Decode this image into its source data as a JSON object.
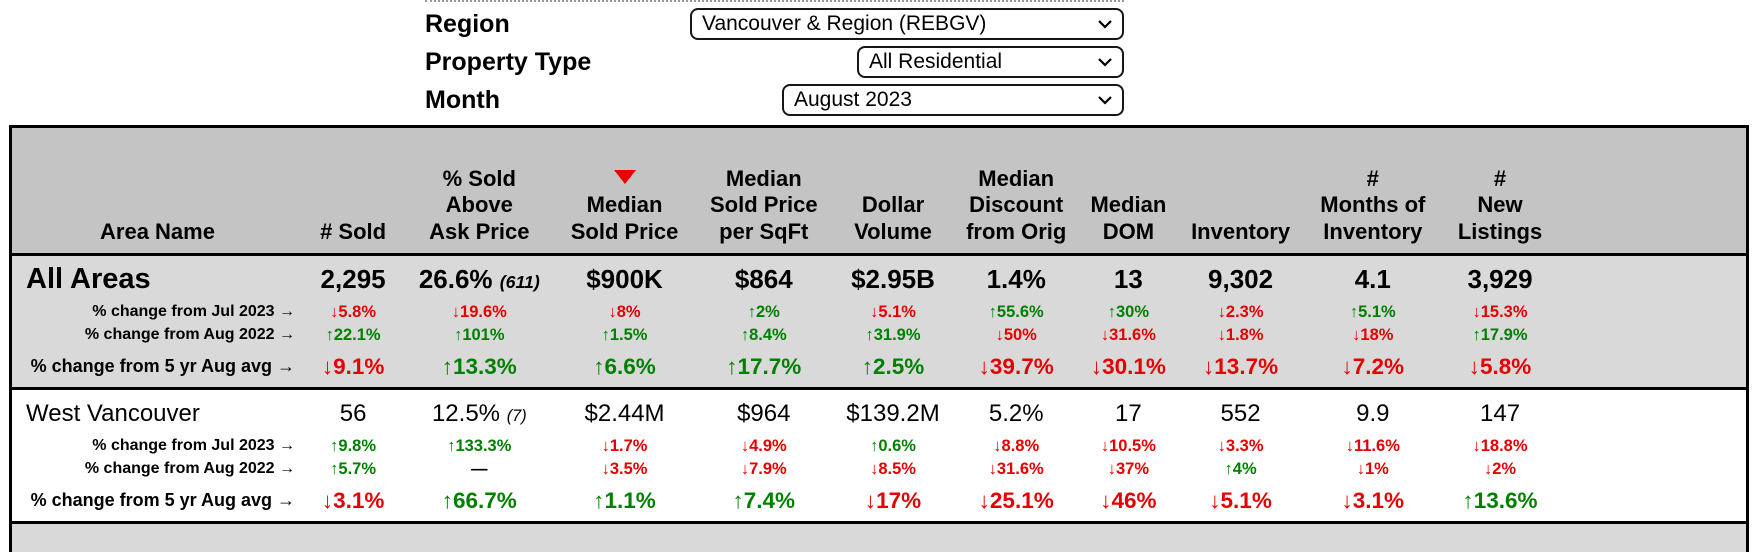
{
  "colors": {
    "up": "#008000",
    "down": "#e60000",
    "sort_indicator": "#ee0000",
    "header_bg": "#c4c4c4",
    "row_alt_bg": "#d9d9d9"
  },
  "controls": {
    "region": {
      "label": "Region",
      "value": "Vancouver & Region (REBGV)"
    },
    "property_type": {
      "label": "Property Type",
      "value": "All Residential"
    },
    "month": {
      "label": "Month",
      "value": "August 2023"
    }
  },
  "table": {
    "columns": [
      {
        "label": "Area Name"
      },
      {
        "label": "# Sold"
      },
      {
        "label": "% Sold\nAbove\nAsk Price"
      },
      {
        "label": "Median\nSold Price",
        "sort": "desc"
      },
      {
        "label": "Median\nSold Price\nper SqFt"
      },
      {
        "label": "Dollar\nVolume"
      },
      {
        "label": "Median\nDiscount\nfrom Orig"
      },
      {
        "label": "Median\nDOM"
      },
      {
        "label": "Inventory"
      },
      {
        "label": "#\nMonths of\nInventory"
      },
      {
        "label": "#\nNew\nListings"
      }
    ],
    "areas": [
      {
        "name": "All Areas",
        "emphasis": true,
        "values": [
          {
            "v": "2,295"
          },
          {
            "v": "26.6%",
            "note": "(611)"
          },
          {
            "v": "$900K"
          },
          {
            "v": "$864"
          },
          {
            "v": "$2.95B"
          },
          {
            "v": "1.4%"
          },
          {
            "v": "13"
          },
          {
            "v": "9,302"
          },
          {
            "v": "4.1"
          },
          {
            "v": "3,929"
          }
        ],
        "changes": [
          {
            "label": "% change from Jul 2023 →",
            "cells": [
              {
                "dir": "down",
                "v": "5.8%"
              },
              {
                "dir": "down",
                "v": "19.6%"
              },
              {
                "dir": "down",
                "v": "8%"
              },
              {
                "dir": "up",
                "v": "2%"
              },
              {
                "dir": "down",
                "v": "5.1%"
              },
              {
                "dir": "up",
                "v": "55.6%"
              },
              {
                "dir": "up",
                "v": "30%"
              },
              {
                "dir": "down",
                "v": "2.3%"
              },
              {
                "dir": "up",
                "v": "5.1%"
              },
              {
                "dir": "down",
                "v": "15.3%"
              }
            ]
          },
          {
            "label": "% change from Aug 2022 →",
            "cells": [
              {
                "dir": "up",
                "v": "22.1%"
              },
              {
                "dir": "up",
                "v": "101%"
              },
              {
                "dir": "up",
                "v": "1.5%"
              },
              {
                "dir": "up",
                "v": "8.4%"
              },
              {
                "dir": "up",
                "v": "31.9%"
              },
              {
                "dir": "down",
                "v": "50%"
              },
              {
                "dir": "down",
                "v": "31.6%"
              },
              {
                "dir": "down",
                "v": "1.8%"
              },
              {
                "dir": "down",
                "v": "18%"
              },
              {
                "dir": "up",
                "v": "17.9%"
              }
            ]
          },
          {
            "label": "% change from 5 yr Aug avg →",
            "emphasis": true,
            "cells": [
              {
                "dir": "down",
                "v": "9.1%"
              },
              {
                "dir": "up",
                "v": "13.3%"
              },
              {
                "dir": "up",
                "v": "6.6%"
              },
              {
                "dir": "up",
                "v": "17.7%"
              },
              {
                "dir": "up",
                "v": "2.5%"
              },
              {
                "dir": "down",
                "v": "39.7%"
              },
              {
                "dir": "down",
                "v": "30.1%"
              },
              {
                "dir": "down",
                "v": "13.7%"
              },
              {
                "dir": "down",
                "v": "7.2%"
              },
              {
                "dir": "down",
                "v": "5.8%"
              }
            ]
          }
        ]
      },
      {
        "name": "West Vancouver",
        "emphasis": false,
        "values": [
          {
            "v": "56"
          },
          {
            "v": "12.5%",
            "note": "(7)"
          },
          {
            "v": "$2.44M"
          },
          {
            "v": "$964"
          },
          {
            "v": "$139.2M"
          },
          {
            "v": "5.2%"
          },
          {
            "v": "17"
          },
          {
            "v": "552"
          },
          {
            "v": "9.9"
          },
          {
            "v": "147"
          }
        ],
        "changes": [
          {
            "label": "% change from Jul 2023 →",
            "cells": [
              {
                "dir": "up",
                "v": "9.8%"
              },
              {
                "dir": "up",
                "v": "133.3%"
              },
              {
                "dir": "down",
                "v": "1.7%"
              },
              {
                "dir": "down",
                "v": "4.9%"
              },
              {
                "dir": "up",
                "v": "0.6%"
              },
              {
                "dir": "down",
                "v": "8.8%"
              },
              {
                "dir": "down",
                "v": "10.5%"
              },
              {
                "dir": "down",
                "v": "3.3%"
              },
              {
                "dir": "down",
                "v": "11.6%"
              },
              {
                "dir": "down",
                "v": "18.8%"
              }
            ]
          },
          {
            "label": "% change from Aug 2022 →",
            "cells": [
              {
                "dir": "up",
                "v": "5.7%"
              },
              {
                "dir": "none",
                "v": "—"
              },
              {
                "dir": "down",
                "v": "3.5%"
              },
              {
                "dir": "down",
                "v": "7.9%"
              },
              {
                "dir": "down",
                "v": "8.5%"
              },
              {
                "dir": "down",
                "v": "31.6%"
              },
              {
                "dir": "down",
                "v": "37%"
              },
              {
                "dir": "up",
                "v": "4%"
              },
              {
                "dir": "down",
                "v": "1%"
              },
              {
                "dir": "down",
                "v": "2%"
              }
            ]
          },
          {
            "label": "% change from 5 yr Aug avg →",
            "emphasis": true,
            "cells": [
              {
                "dir": "down",
                "v": "3.1%"
              },
              {
                "dir": "up",
                "v": "66.7%"
              },
              {
                "dir": "up",
                "v": "1.1%"
              },
              {
                "dir": "up",
                "v": "7.4%"
              },
              {
                "dir": "down",
                "v": "17%"
              },
              {
                "dir": "down",
                "v": "25.1%"
              },
              {
                "dir": "down",
                "v": "46%"
              },
              {
                "dir": "down",
                "v": "5.1%"
              },
              {
                "dir": "down",
                "v": "3.1%"
              },
              {
                "dir": "up",
                "v": "13.6%"
              }
            ]
          }
        ]
      }
    ]
  }
}
